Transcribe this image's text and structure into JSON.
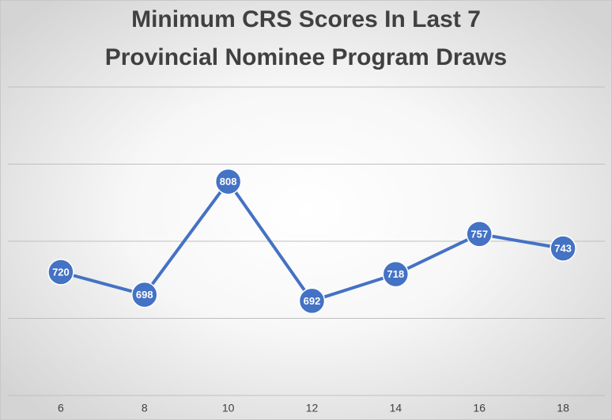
{
  "chart_data": {
    "type": "line",
    "title": [
      "Minimum CRS Scores In Last 7",
      "Provincial Nominee Program Draws"
    ],
    "categories": [
      "6",
      "8",
      "10",
      "12",
      "14",
      "16",
      "18"
    ],
    "values": [
      720,
      698,
      808,
      692,
      718,
      757,
      743
    ],
    "color": "#4472c4",
    "ylim": [
      600,
      900
    ],
    "yticks": [
      600,
      675,
      750,
      825,
      900
    ],
    "grid": true
  }
}
